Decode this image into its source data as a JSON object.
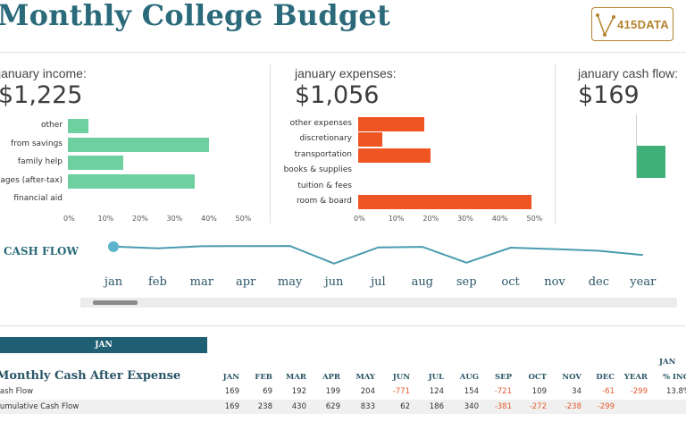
{
  "title": "Monthly College Budget",
  "logo": {
    "text": "415DATA"
  },
  "colors": {
    "income": "#6ed0a0",
    "expenses": "#ee5522",
    "cashflow": "#3fb07a",
    "line": "#4a9bb0",
    "accent": "#1f5f73"
  },
  "income": {
    "label": "january income:",
    "total": "$1,225",
    "categories": [
      "other",
      "from savings",
      "family help",
      "wages (after-tax)",
      "financial aid"
    ],
    "values": [
      6,
      41,
      16,
      37,
      0
    ],
    "ticks": [
      "0%",
      "10%",
      "20%",
      "30%",
      "40%",
      "50%"
    ]
  },
  "expenses": {
    "label": "january expenses:",
    "total": "$1,056",
    "categories": [
      "other expenses",
      "discretionary",
      "transportation",
      "books & supplies",
      "tuition & fees",
      "room & board"
    ],
    "values": [
      19,
      7,
      21,
      0,
      0,
      50
    ],
    "ticks": [
      "0%",
      "10%",
      "20%",
      "30%",
      "40%",
      "50%"
    ]
  },
  "cashflow": {
    "label": "january cash flow:",
    "total": "$169"
  },
  "cash_flow_chart": {
    "label": "CASH FLOW",
    "months": [
      "jan",
      "feb",
      "mar",
      "apr",
      "may",
      "jun",
      "jul",
      "aug",
      "sep",
      "oct",
      "nov",
      "dec",
      "year"
    ],
    "values": [
      169,
      69,
      192,
      199,
      204,
      -771,
      124,
      154,
      -721,
      109,
      34,
      -61,
      -299
    ],
    "selected": "jan"
  },
  "table": {
    "selected_month": "JAN",
    "title": "Monthly Cash After Expense",
    "columns": [
      "JAN",
      "FEB",
      "MAR",
      "APR",
      "MAY",
      "JUN",
      "JUL",
      "AUG",
      "SEP",
      "OCT",
      "NOV",
      "DEC",
      "YEAR"
    ],
    "pct_header_top": "JAN",
    "pct_header": "% INC",
    "rows": [
      {
        "label": "Cash Flow",
        "values": [
          "169",
          "69",
          "192",
          "199",
          "204",
          "-771",
          "124",
          "154",
          "-721",
          "109",
          "34",
          "-61",
          "-299"
        ],
        "pct": "13.8%"
      },
      {
        "label": "Cumulative Cash Flow",
        "values": [
          "169",
          "238",
          "430",
          "629",
          "833",
          "62",
          "186",
          "340",
          "-381",
          "-272",
          "-238",
          "-299",
          ""
        ],
        "pct": ""
      }
    ]
  }
}
